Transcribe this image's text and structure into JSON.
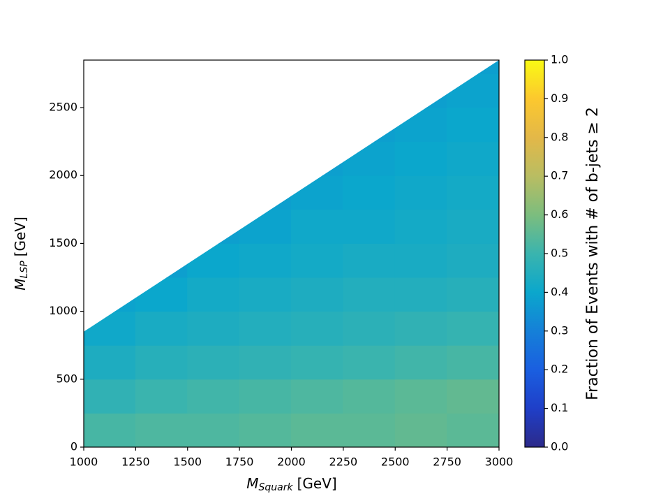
{
  "chart_data": {
    "type": "contourf",
    "x_label": {
      "symbol": "M",
      "subscript": "Squark",
      "unit": "[GeV]"
    },
    "y_label": {
      "symbol": "M",
      "subscript": "LSP",
      "unit": "[GeV]"
    },
    "colorbar_label": "Fraction of Events with # of b-jets ≥ 2",
    "xlim": [
      1000,
      3000
    ],
    "ylim": [
      0,
      2850
    ],
    "xticks": [
      1000,
      1250,
      1500,
      1750,
      2000,
      2250,
      2500,
      2750,
      3000
    ],
    "yticks": [
      0,
      500,
      1000,
      1500,
      2000,
      2500
    ],
    "x": [
      1125,
      1375,
      1625,
      1875,
      2125,
      2375,
      2625,
      2875
    ],
    "y": [
      125,
      375,
      625,
      875,
      1125,
      1375,
      1625,
      1875,
      2125,
      2375,
      2625,
      2875
    ],
    "z": [
      [
        0.52,
        0.53,
        0.53,
        0.54,
        0.55,
        0.55,
        0.56,
        0.55
      ],
      [
        0.48,
        0.5,
        0.51,
        0.52,
        0.53,
        0.54,
        0.55,
        0.56
      ],
      [
        0.44,
        0.46,
        0.47,
        0.48,
        0.49,
        0.5,
        0.51,
        0.52
      ],
      [
        0.41,
        0.43,
        0.44,
        0.45,
        0.46,
        0.47,
        0.48,
        0.49
      ],
      [
        0.39,
        0.4,
        0.42,
        0.43,
        0.44,
        0.45,
        0.45,
        0.46
      ],
      [
        null,
        0.38,
        0.4,
        0.41,
        0.42,
        0.43,
        0.43,
        0.44
      ],
      [
        null,
        null,
        0.38,
        0.39,
        0.41,
        0.41,
        0.42,
        0.43
      ],
      [
        null,
        null,
        null,
        0.38,
        0.39,
        0.4,
        0.41,
        0.42
      ],
      [
        null,
        null,
        null,
        null,
        0.38,
        0.39,
        0.4,
        0.41
      ],
      [
        null,
        null,
        null,
        null,
        null,
        0.38,
        0.39,
        0.4
      ],
      [
        null,
        null,
        null,
        null,
        null,
        null,
        0.38,
        0.39
      ],
      [
        null,
        null,
        null,
        null,
        null,
        null,
        null,
        0.38
      ]
    ],
    "boundary": {
      "x": [
        1000,
        3000
      ],
      "y": [
        850,
        2850
      ]
    },
    "clim": [
      0,
      1
    ],
    "colormap": [
      "#2c2a8a",
      "#1f3fc8",
      "#1a5fe0",
      "#1580d8",
      "#0ba7cc",
      "#3ab4ae",
      "#7cbd7e",
      "#b9bd62",
      "#e3b848",
      "#fcc82e",
      "#f9fa14"
    ],
    "cbar_ticks": [
      {
        "value": 0,
        "label": "0.0"
      },
      {
        "value": 0.1,
        "label": "0.1"
      },
      {
        "value": 0.2,
        "label": "0.2"
      },
      {
        "value": 0.3,
        "label": "0.3"
      },
      {
        "value": 0.4,
        "label": "0.4"
      },
      {
        "value": 0.5,
        "label": "0.5"
      },
      {
        "value": 0.6,
        "label": "0.6"
      },
      {
        "value": 0.7,
        "label": "0.7"
      },
      {
        "value": 0.8,
        "label": "0.8"
      },
      {
        "value": 0.9,
        "label": "0.9"
      },
      {
        "value": 1,
        "label": "1.0"
      }
    ]
  }
}
